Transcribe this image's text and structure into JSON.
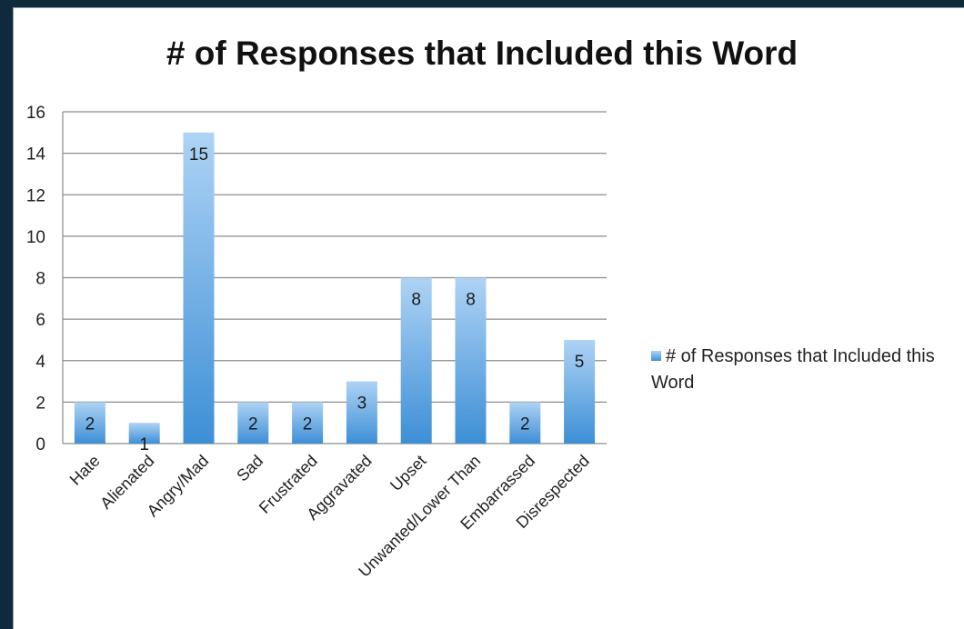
{
  "chart_data": {
    "type": "bar",
    "title": "# of Responses that Included this Word",
    "categories": [
      "Hate",
      "Alienated",
      "Angry/Mad",
      "Sad",
      "Frustrated",
      "Aggravated",
      "Upset",
      "Unwanted/Lower Than",
      "Embarrassed",
      "Disrespected"
    ],
    "series": [
      {
        "name": "# of Responses that Included this Word",
        "values": [
          2,
          1,
          15,
          2,
          2,
          3,
          8,
          8,
          2,
          5
        ]
      }
    ],
    "ylim": [
      0,
      16
    ],
    "yticks": [
      "0",
      "2",
      "4",
      "6",
      "8",
      "10",
      "12",
      "14",
      "16"
    ],
    "grid": true,
    "legend_position": "right",
    "bar_color_top": "#aed3f5",
    "bar_color_bottom": "#3d8fd6",
    "grid_color": "#8c8c8c"
  }
}
